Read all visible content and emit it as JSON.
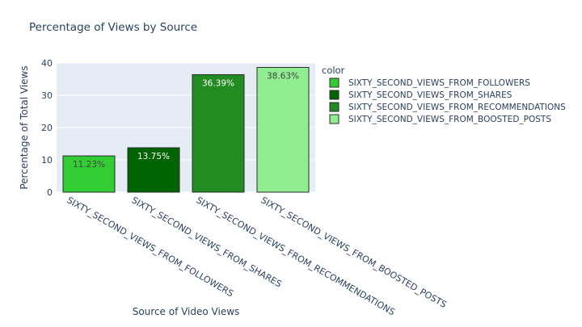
{
  "chart_data": {
    "type": "bar",
    "title": "Percentage of Views by Source",
    "xlabel": "Source of Video Views",
    "ylabel": "Percentage of Total Views",
    "categories": [
      "SIXTY_SECOND_VIEWS_FROM_FOLLOWERS",
      "SIXTY_SECOND_VIEWS_FROM_SHARES",
      "SIXTY_SECOND_VIEWS_FROM_RECOMMENDATIONS",
      "SIXTY_SECOND_VIEWS_FROM_BOOSTED_POSTS"
    ],
    "values": [
      11.23,
      13.75,
      36.39,
      38.63
    ],
    "data_labels": [
      "11.23%",
      "13.75%",
      "36.39%",
      "38.63%"
    ],
    "colors": [
      "#32cd32",
      "#006400",
      "#228b22",
      "#90ee90"
    ],
    "label_colors": [
      "#444444",
      "#ffffff",
      "#ffffff",
      "#444444"
    ],
    "ylim": [
      0,
      40
    ],
    "yticks": [
      0,
      10,
      20,
      30,
      40
    ],
    "grid": true,
    "legend": {
      "title": "color",
      "placement": "right",
      "entries": [
        "SIXTY_SECOND_VIEWS_FROM_FOLLOWERS",
        "SIXTY_SECOND_VIEWS_FROM_SHARES",
        "SIXTY_SECOND_VIEWS_FROM_RECOMMENDATIONS",
        "SIXTY_SECOND_VIEWS_FROM_BOOSTED_POSTS"
      ]
    },
    "plot_background": "#e5ecf6"
  }
}
